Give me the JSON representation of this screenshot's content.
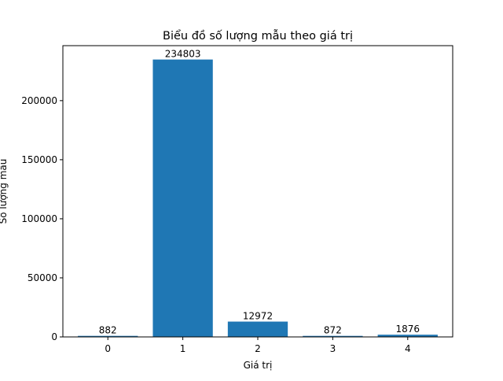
{
  "chart_data": {
    "type": "bar",
    "title": "Biểu đồ số lượng mẫu theo giá trị",
    "xlabel": "Giá trị",
    "ylabel": "Số lượng mẫu",
    "categories": [
      "0",
      "1",
      "2",
      "3",
      "4"
    ],
    "values": [
      882,
      234803,
      12972,
      872,
      1876
    ],
    "data_labels": [
      "882",
      "234803",
      "12972",
      "872",
      "1876"
    ],
    "yticks": [
      0,
      50000,
      100000,
      150000,
      200000
    ],
    "ytick_labels": [
      "0",
      "50000",
      "100000",
      "150000",
      "200000"
    ],
    "ylim": [
      0,
      246543
    ],
    "grid": false,
    "legend": "none",
    "bar_color": "#1f77b4"
  }
}
